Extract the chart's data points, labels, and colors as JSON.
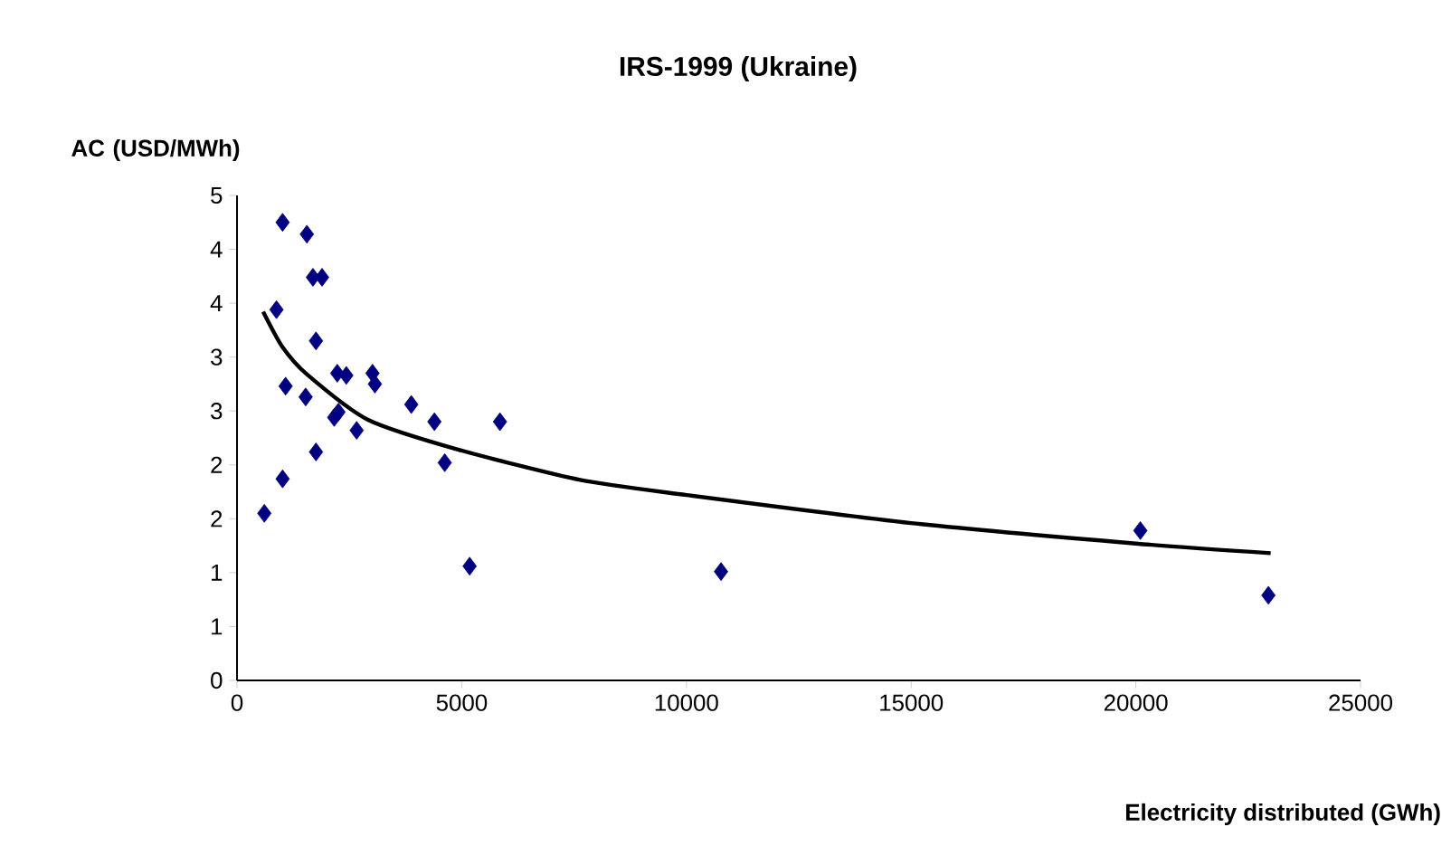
{
  "chart_data": {
    "type": "scatter",
    "title": "IRS-1999 (Ukraine)",
    "xlabel": "Electricity distributed (GWh)",
    "ylabel": "AC (USD/MWh)",
    "xlim": [
      0,
      25000
    ],
    "xticks": [
      0,
      5000,
      10000,
      15000,
      20000,
      25000
    ],
    "ylim": [
      0,
      4.5
    ],
    "yticks": [
      0,
      {
        "value": 0.5,
        "label": "1"
      },
      {
        "value": 1,
        "label": "1"
      },
      {
        "value": 1.5,
        "label": "2"
      },
      {
        "value": 2,
        "label": "2"
      },
      {
        "value": 2.5,
        "label": "3"
      },
      {
        "value": 3,
        "label": "3"
      },
      {
        "value": 3.5,
        "label": "4"
      },
      {
        "value": 4,
        "label": "4"
      },
      {
        "value": 4.5,
        "label": "5"
      }
    ],
    "grid": false,
    "series": [
      {
        "marker": "diamond",
        "color": "#000080",
        "x": [
          1014,
          1554,
          1689,
          1892,
          878,
          1757,
          2230,
          2432,
          3014,
          3068,
          1081,
          1527,
          2162,
          2257,
          2662,
          3878,
          4392,
          5851,
          4622,
          1757,
          1014,
          608,
          5176,
          10770,
          20100,
          22950
        ],
        "values": [
          4.25,
          4.14,
          3.74,
          3.74,
          3.44,
          3.15,
          2.85,
          2.83,
          2.85,
          2.75,
          2.73,
          2.63,
          2.44,
          2.49,
          2.32,
          2.56,
          2.4,
          2.4,
          2.02,
          2.12,
          1.87,
          1.55,
          1.06,
          1.01,
          1.39,
          0.79
        ]
      },
      {
        "type": "line",
        "marker": "none",
        "color": "#000000",
        "x": [
          581,
          1000,
          1554,
          2905,
          4932,
          7635,
          10000,
          15000,
          20000,
          23000
        ],
        "values": [
          3.42,
          3.1,
          2.84,
          2.42,
          2.14,
          1.86,
          1.72,
          1.46,
          1.27,
          1.18
        ]
      }
    ]
  }
}
